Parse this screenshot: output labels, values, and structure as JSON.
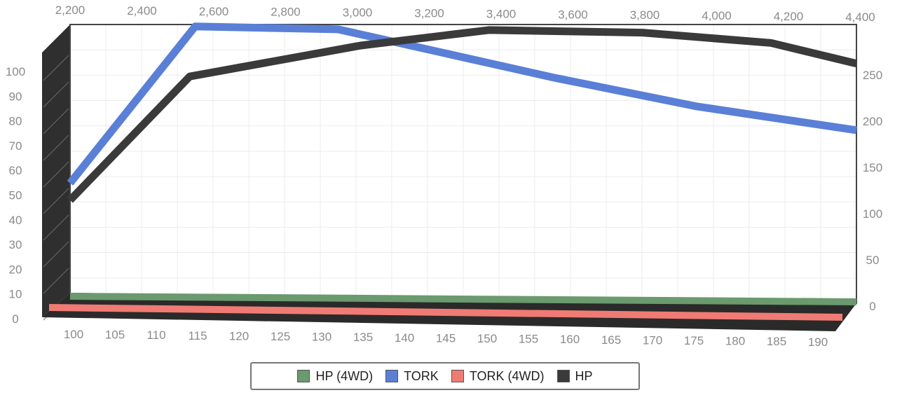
{
  "chart_data": {
    "type": "line",
    "title": "",
    "x_bottom": {
      "ticks": [
        100,
        105,
        110,
        115,
        120,
        125,
        130,
        135,
        140,
        145,
        150,
        155,
        160,
        165,
        170,
        175,
        180,
        185,
        190
      ],
      "range": [
        98,
        190
      ]
    },
    "x_top": {
      "ticks": [
        "2,200",
        "2,400",
        "2,600",
        "2,800",
        "3,000",
        "3,200",
        "3,400",
        "3,600",
        "3,800",
        "4,000",
        "4,200",
        "4,400"
      ],
      "range": [
        2200,
        4400
      ]
    },
    "y_left": {
      "ticks": [
        0,
        10,
        20,
        30,
        40,
        50,
        60,
        70,
        80,
        90,
        100
      ],
      "range": [
        0,
        100
      ]
    },
    "y_right": {
      "ticks": [
        0,
        50,
        100,
        150,
        200,
        250
      ],
      "range": [
        0,
        290
      ]
    },
    "grid": true,
    "legend_position": "bottom",
    "series": [
      {
        "name": "HP (4WD)",
        "color": "#6a9a6e",
        "x": [
          100,
          190
        ],
        "y": [
          5,
          5
        ]
      },
      {
        "name": "TORK",
        "color": "#5a7fd6",
        "x": [
          2200,
          2550,
          2950,
          3550,
          3950,
          4400
        ],
        "y": [
          125,
          288,
          285,
          235,
          205,
          180
        ]
      },
      {
        "name": "TORK (4WD)",
        "color": "#f07b74",
        "x": [
          100,
          190
        ],
        "y": [
          2,
          2
        ]
      },
      {
        "name": "HP",
        "color": "#3a3a3a",
        "x": [
          98,
          112,
          132,
          147,
          165,
          180,
          190
        ],
        "y": [
          40,
          88,
          100,
          106,
          105,
          101,
          93
        ]
      }
    ]
  }
}
